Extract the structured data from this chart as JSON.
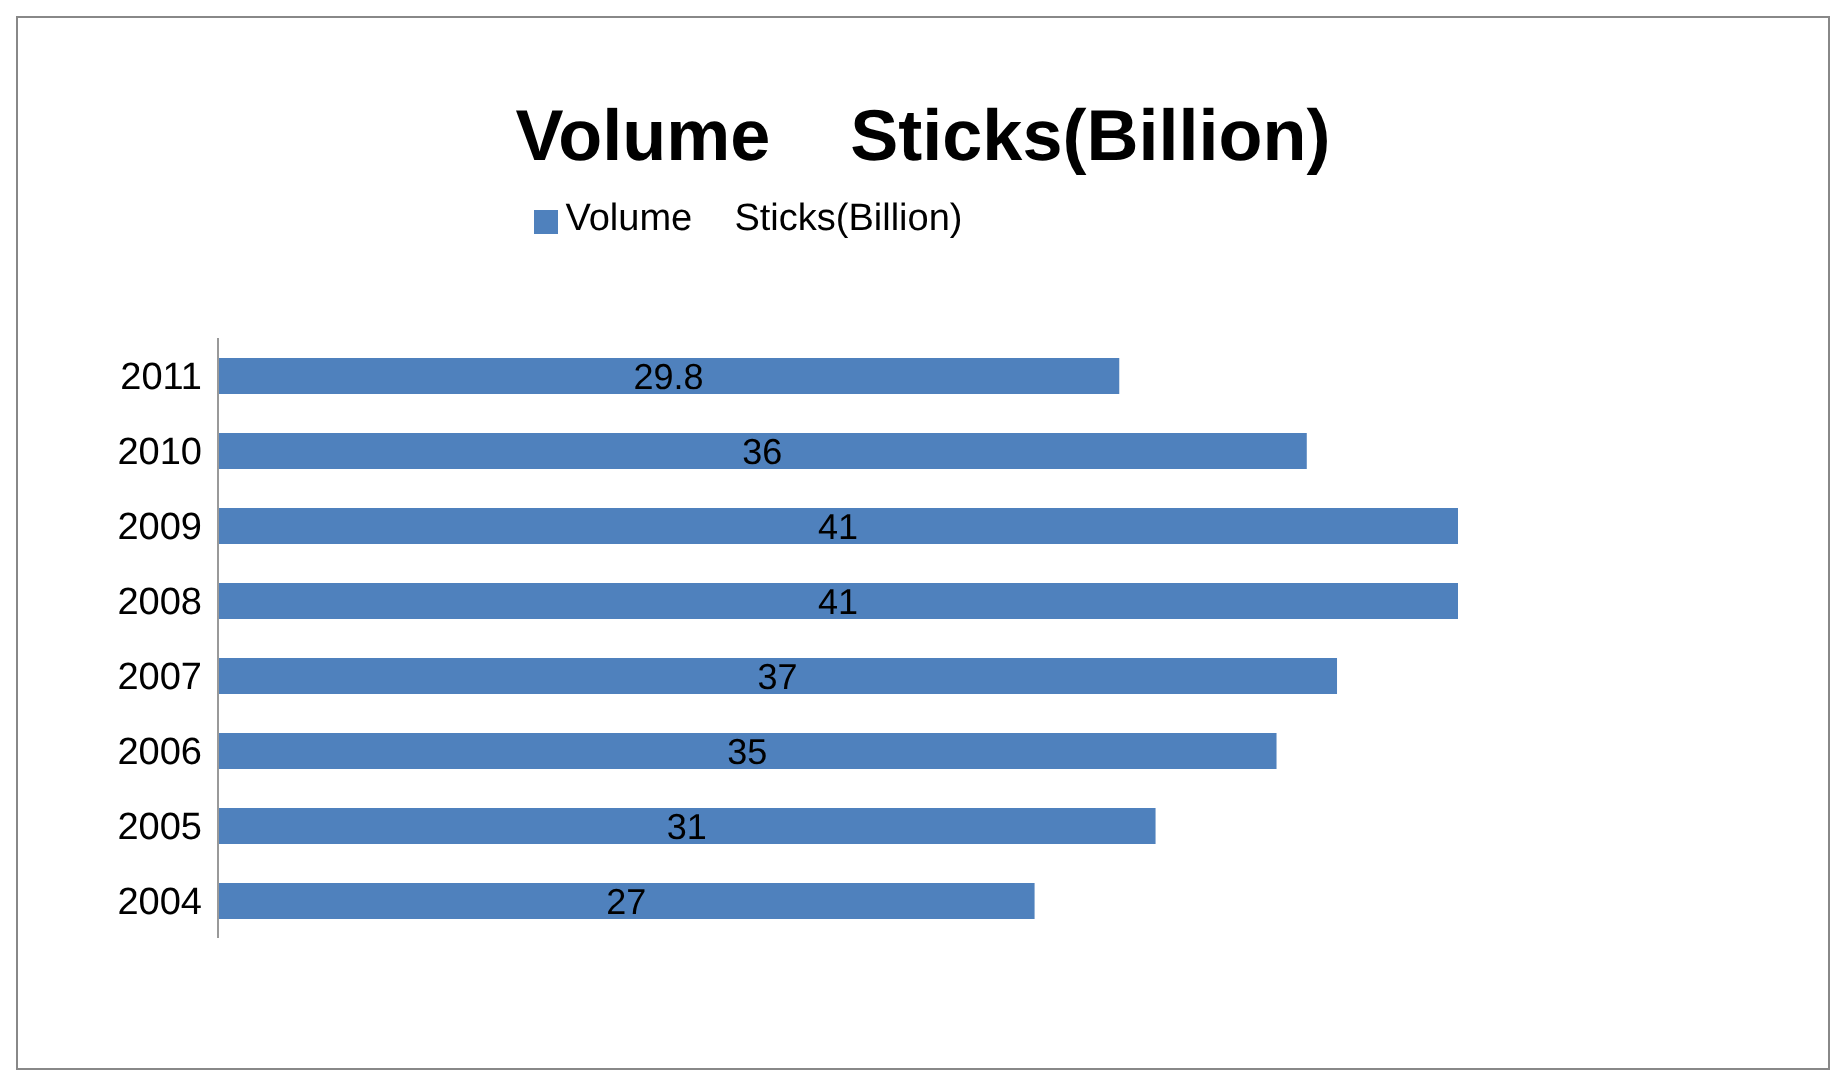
{
  "chart_data": {
    "type": "bar",
    "orientation": "horizontal",
    "title": "Volume    Sticks(Billion)",
    "categories": [
      "2011",
      "2010",
      "2009",
      "2008",
      "2007",
      "2006",
      "2005",
      "2004"
    ],
    "series": [
      {
        "name": "Volume    Sticks(Billion)",
        "color": "#4f81bd",
        "values": [
          29.8,
          36,
          41,
          41,
          37,
          35,
          31,
          27
        ]
      }
    ],
    "data_labels": true,
    "legend": "top"
  }
}
